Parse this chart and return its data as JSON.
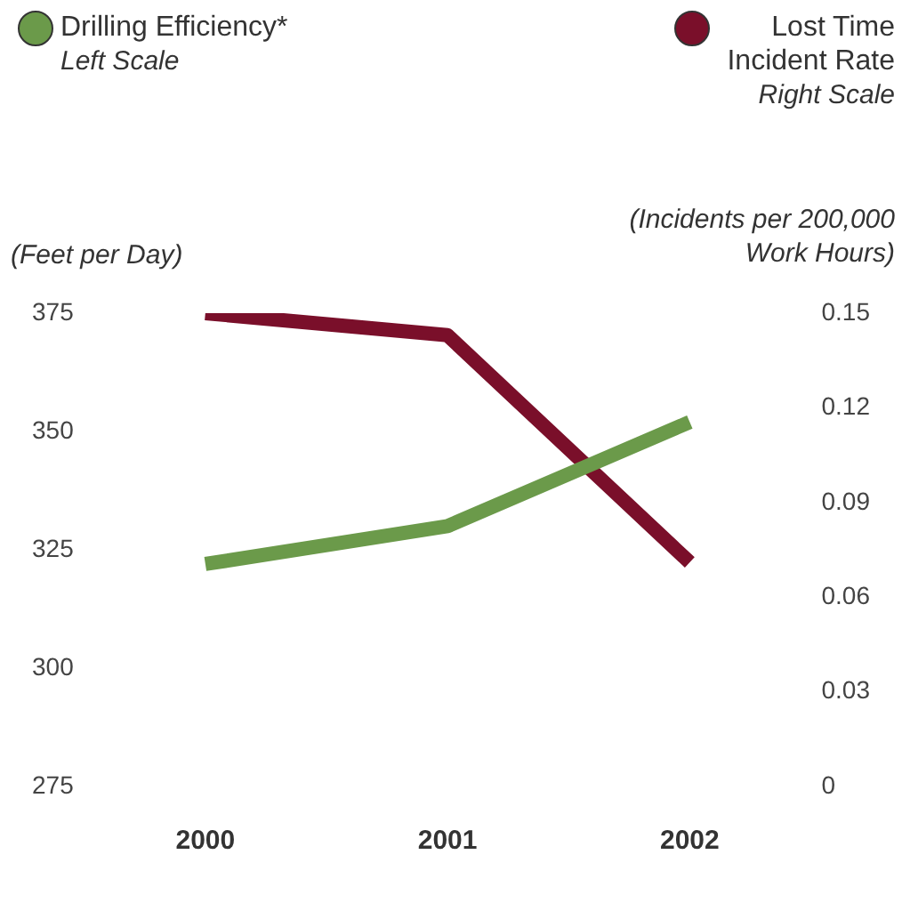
{
  "chart_data": {
    "type": "line",
    "categories": [
      "2000",
      "2001",
      "2002"
    ],
    "series": [
      {
        "name": "Drilling Efficiency*",
        "color": "#6b9a4a",
        "values": [
          322,
          330,
          352
        ]
      },
      {
        "name": "Lost Time Incident Rate",
        "color": "#7a0f2a",
        "values": [
          0.15,
          0.143,
          0.071
        ],
        "axis": "y2"
      }
    ],
    "ylabel": "(Feet per Day)",
    "y2label": "(Incidents per 200,000 Work Hours)",
    "ylim": [
      275,
      375
    ],
    "yticks": [
      275,
      300,
      325,
      350,
      375
    ],
    "y2lim": [
      0,
      0.15
    ],
    "y2ticks": [
      0,
      0.03,
      0.06,
      0.09,
      0.12,
      0.15
    ],
    "annotations": [
      "Left Scale",
      "Right Scale"
    ],
    "grid": false,
    "legend": "top",
    "marker": "none",
    "line_style": "solid"
  }
}
